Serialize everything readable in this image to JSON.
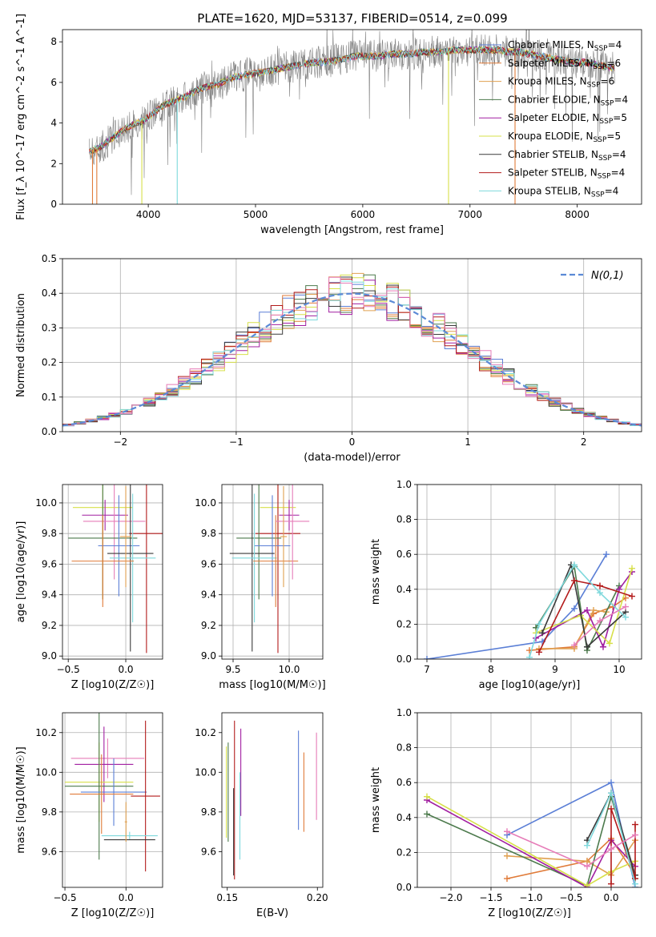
{
  "figure": {
    "title": "PLATE=1620, MJD=53137, FIBERID=0514, z=0.099"
  },
  "colors": {
    "chabrier_miles": "#5b7fd6",
    "salpeter_miles": "#e07b39",
    "kroupa_miles": "#e0a050",
    "chabrier_elodie": "#4c7a4c",
    "salpeter_elodie": "#a11fa1",
    "kroupa_elodie": "#d7e04a",
    "chabrier_stelib": "#3a3a3a",
    "salpeter_stelib": "#b31b1b",
    "kroupa_stelib": "#7ed8dc",
    "extra_pink": "#e67cb8",
    "gauss": "#5b8ad6",
    "data_gray": "#808080"
  },
  "chart_data": [
    {
      "id": "spectrum",
      "type": "line",
      "xlabel": "wavelength [Angstrom, rest frame]",
      "ylabel": "Flux [f_λ 10^-17 erg cm^-2 s^-1 A^-1]",
      "xlim": [
        3200,
        8600
      ],
      "ylim": [
        0,
        8.6
      ],
      "xticks": [
        4000,
        5000,
        6000,
        7000,
        8000
      ],
      "yticks": [
        0,
        2,
        4,
        6,
        8
      ],
      "grid": false,
      "legend_position": "right",
      "continuum": {
        "x": [
          3450,
          3550,
          3650,
          3750,
          3850,
          3950,
          4050,
          4150,
          4250,
          4350,
          4450,
          4550,
          4650,
          4750,
          4850,
          4950,
          5050,
          5150,
          5250,
          5350,
          5450,
          5550,
          5650,
          5750,
          5850,
          5950,
          6050,
          6150,
          6250,
          6350,
          6450,
          6550,
          6650,
          6750,
          6850,
          6950,
          7050,
          7150,
          7250,
          7350,
          7450,
          7550,
          7650,
          7750,
          7850,
          7950,
          8050,
          8150,
          8250,
          8350
        ],
        "y": [
          2.6,
          2.8,
          3.2,
          3.6,
          3.9,
          4.1,
          4.5,
          4.9,
          5.1,
          5.3,
          5.6,
          5.8,
          5.9,
          6.2,
          6.3,
          6.4,
          6.5,
          6.6,
          6.7,
          6.8,
          6.9,
          7.0,
          7.0,
          7.1,
          7.2,
          7.3,
          7.3,
          7.3,
          7.4,
          7.4,
          7.4,
          7.5,
          7.5,
          7.5,
          7.6,
          7.6,
          7.6,
          7.6,
          7.6,
          7.5,
          7.5,
          7.4,
          7.3,
          7.2,
          7.1,
          7.0,
          7.0,
          6.9,
          6.8,
          6.7
        ]
      },
      "series": [
        {
          "name": "Chabrier MILES, N_SSP=4",
          "color_key": "chabrier_miles"
        },
        {
          "name": "Salpeter MILES, N_SSP=6",
          "color_key": "salpeter_miles"
        },
        {
          "name": "Kroupa MILES, N_SSP=6",
          "color_key": "kroupa_miles"
        },
        {
          "name": "Chabrier ELODIE, N_SSP=4",
          "color_key": "chabrier_elodie"
        },
        {
          "name": "Salpeter ELODIE, N_SSP=5",
          "color_key": "salpeter_elodie"
        },
        {
          "name": "Kroupa ELODIE, N_SSP=5",
          "color_key": "kroupa_elodie"
        },
        {
          "name": "Chabrier STELIB, N_SSP=4",
          "color_key": "chabrier_stelib"
        },
        {
          "name": "Salpeter STELIB, N_SSP=4",
          "color_key": "salpeter_stelib"
        },
        {
          "name": "Kroupa STELIB, N_SSP=4",
          "color_key": "kroupa_stelib"
        }
      ]
    },
    {
      "id": "residuals",
      "type": "line",
      "xlabel": "(data-model)/error",
      "ylabel": "Normed distribution",
      "xlim": [
        -2.5,
        2.5
      ],
      "ylim": [
        0,
        0.5
      ],
      "xticks": [
        -2,
        -1,
        0,
        1,
        2
      ],
      "yticks": [
        0.0,
        0.1,
        0.2,
        0.3,
        0.4,
        0.5
      ],
      "grid": true,
      "legend_position": "top-right",
      "gaussian_label": "N(0,1)",
      "hist_bins": [
        -2.6,
        2.6,
        0.1
      ]
    },
    {
      "id": "age_vs_Z",
      "type": "scatter",
      "xlabel": "Z [log10(Z/Z☉)]",
      "ylabel": "age [log10(age/yr)]",
      "xlim": [
        -0.55,
        0.32
      ],
      "ylim": [
        8.98,
        10.12
      ],
      "xticks": [
        -0.5,
        0.0
      ],
      "yticks": [
        9.0,
        9.2,
        9.4,
        9.6,
        9.8,
        10.0
      ],
      "grid": true,
      "points": [
        {
          "color_key": "kroupa_elodie",
          "x": -0.2,
          "xerr": 0.26,
          "y": 9.97,
          "yerr": 0.6
        },
        {
          "color_key": "salpeter_elodie",
          "x": -0.18,
          "xerr": 0.2,
          "y": 9.92,
          "yerr": 0.1
        },
        {
          "color_key": "extra_pink",
          "x": -0.1,
          "xerr": 0.27,
          "y": 9.88,
          "yerr": 0.38
        },
        {
          "color_key": "salpeter_stelib",
          "x": 0.18,
          "xerr": 0.15,
          "y": 9.8,
          "yerr": 0.78
        },
        {
          "color_key": "chabrier_elodie",
          "x": -0.2,
          "xerr": 0.3,
          "y": 9.77,
          "yerr": 0.4
        },
        {
          "color_key": "chabrier_miles",
          "x": -0.06,
          "xerr": 0.18,
          "y": 9.72,
          "yerr": 0.33
        },
        {
          "color_key": "chabrier_stelib",
          "x": 0.04,
          "xerr": 0.2,
          "y": 9.67,
          "yerr": 0.64
        },
        {
          "color_key": "kroupa_stelib",
          "x": 0.06,
          "xerr": 0.2,
          "y": 9.64,
          "yerr": 0.42
        },
        {
          "color_key": "salpeter_miles",
          "x": -0.2,
          "xerr": 0.27,
          "y": 9.62,
          "yerr": 0.3
        },
        {
          "color_key": "kroupa_miles",
          "x": 0.0,
          "xerr": 0.05,
          "y": 9.78,
          "yerr": 0.33
        }
      ]
    },
    {
      "id": "age_vs_mass",
      "type": "scatter",
      "xlabel": "mass [log10(M/M☉)]",
      "ylabel": "",
      "xlim": [
        9.4,
        10.3
      ],
      "ylim": [
        8.98,
        10.12
      ],
      "xticks": [
        9.5,
        10.0
      ],
      "yticks": [
        9.0,
        9.2,
        9.4,
        9.6,
        9.8,
        10.0
      ],
      "grid": true,
      "points": [
        {
          "color_key": "kroupa_elodie",
          "x": 9.9,
          "xerr": 0.16,
          "y": 9.97,
          "yerr": 0.6
        },
        {
          "color_key": "salpeter_elodie",
          "x": 10.0,
          "xerr": 0.09,
          "y": 9.92,
          "yerr": 0.1
        },
        {
          "color_key": "salpeter_stelib",
          "x": 9.9,
          "xerr": 0.2,
          "y": 9.8,
          "yerr": 0.78
        },
        {
          "color_key": "chabrier_elodie",
          "x": 9.73,
          "xerr": 0.2,
          "y": 9.77,
          "yerr": 0.4
        },
        {
          "color_key": "chabrier_miles",
          "x": 9.85,
          "xerr": 0.16,
          "y": 9.72,
          "yerr": 0.33
        },
        {
          "color_key": "chabrier_stelib",
          "x": 9.67,
          "xerr": 0.2,
          "y": 9.67,
          "yerr": 0.64
        },
        {
          "color_key": "kroupa_stelib",
          "x": 9.69,
          "xerr": 0.2,
          "y": 9.64,
          "yerr": 0.42
        },
        {
          "color_key": "salpeter_miles",
          "x": 9.88,
          "xerr": 0.2,
          "y": 9.62,
          "yerr": 0.3
        },
        {
          "color_key": "extra_pink",
          "x": 10.03,
          "xerr": 0.15,
          "y": 9.88,
          "yerr": 0.38
        },
        {
          "color_key": "kroupa_miles",
          "x": 9.95,
          "xerr": 0.03,
          "y": 9.78,
          "yerr": 0.33
        }
      ]
    },
    {
      "id": "weight_vs_age",
      "type": "line",
      "xlabel": "age [log10(age/yr)]",
      "ylabel": "mass weight",
      "xlim": [
        6.85,
        10.35
      ],
      "ylim": [
        0,
        1
      ],
      "xticks": [
        7,
        8,
        9,
        10
      ],
      "yticks": [
        0.0,
        0.2,
        0.4,
        0.6,
        0.8,
        1.0
      ],
      "grid": true,
      "series": [
        {
          "color_key": "chabrier_miles",
          "x": [
            7.0,
            8.8,
            9.3,
            9.8
          ],
          "y": [
            0.0,
            0.1,
            0.29,
            0.6
          ]
        },
        {
          "color_key": "salpeter_miles",
          "x": [
            8.6,
            9.3,
            9.6,
            9.9,
            10.1
          ],
          "y": [
            0.05,
            0.07,
            0.26,
            0.3,
            0.35
          ]
        },
        {
          "color_key": "kroupa_miles",
          "x": [
            8.75,
            9.3,
            9.6,
            9.8
          ],
          "y": [
            0.06,
            0.06,
            0.28,
            0.27
          ]
        },
        {
          "color_key": "chabrier_elodie",
          "x": [
            8.7,
            9.3,
            9.5,
            10.0
          ],
          "y": [
            0.18,
            0.53,
            0.05,
            0.42
          ]
        },
        {
          "color_key": "salpeter_elodie",
          "x": [
            8.7,
            9.5,
            9.75,
            10.0,
            10.2
          ],
          "y": [
            0.12,
            0.28,
            0.07,
            0.4,
            0.5
          ]
        },
        {
          "color_key": "kroupa_elodie",
          "x": [
            8.7,
            9.4,
            9.85,
            10.2
          ],
          "y": [
            0.15,
            0.25,
            0.09,
            0.52
          ]
        },
        {
          "color_key": "chabrier_stelib",
          "x": [
            8.8,
            9.25,
            9.5,
            10.1
          ],
          "y": [
            0.15,
            0.54,
            0.07,
            0.27
          ]
        },
        {
          "color_key": "salpeter_stelib",
          "x": [
            8.75,
            9.3,
            9.7,
            10.2
          ],
          "y": [
            0.04,
            0.45,
            0.42,
            0.36
          ]
        },
        {
          "color_key": "kroupa_stelib",
          "x": [
            8.6,
            8.75,
            9.3,
            9.7,
            10.1
          ],
          "y": [
            0.01,
            0.2,
            0.54,
            0.38,
            0.24
          ]
        },
        {
          "color_key": "extra_pink",
          "x": [
            9.3,
            9.7,
            10.1
          ],
          "y": [
            0.08,
            0.22,
            0.3
          ]
        }
      ]
    },
    {
      "id": "mass_vs_Z",
      "type": "scatter",
      "xlabel": "Z [log10(Z/Z☉)]",
      "ylabel": "mass [log10(M/M☉)]",
      "xlim": [
        -0.52,
        0.3
      ],
      "ylim": [
        9.42,
        10.3
      ],
      "xticks": [
        -0.5,
        0.0
      ],
      "yticks": [
        9.6,
        9.8,
        10.0,
        10.2
      ],
      "grid": true,
      "points": [
        {
          "color_key": "extra_pink",
          "x": -0.15,
          "xerr": 0.3,
          "y": 10.07,
          "yerr": 0.1
        },
        {
          "color_key": "salpeter_elodie",
          "x": -0.18,
          "xerr": 0.24,
          "y": 10.04,
          "yerr": 0.19
        },
        {
          "color_key": "kroupa_elodie",
          "x": -0.22,
          "xerr": 0.28,
          "y": 9.95,
          "yerr": 0.2
        },
        {
          "color_key": "chabrier_elodie",
          "x": -0.22,
          "xerr": 0.28,
          "y": 9.93,
          "yerr": 0.37
        },
        {
          "color_key": "chabrier_miles",
          "x": -0.1,
          "xerr": 0.27,
          "y": 9.9,
          "yerr": 0.17
        },
        {
          "color_key": "salpeter_miles",
          "x": -0.2,
          "xerr": 0.26,
          "y": 9.89,
          "yerr": 0.2
        },
        {
          "color_key": "salpeter_stelib",
          "x": 0.16,
          "xerr": 0.12,
          "y": 9.88,
          "yerr": 0.38
        },
        {
          "color_key": "kroupa_stelib",
          "x": 0.03,
          "xerr": 0.23,
          "y": 9.68,
          "yerr": 0.02
        },
        {
          "color_key": "chabrier_stelib",
          "x": 0.03,
          "xerr": 0.21,
          "y": 9.66,
          "yerr": 0.0
        },
        {
          "color_key": "kroupa_miles",
          "x": 0.0,
          "xerr": 0.01,
          "y": 9.75,
          "yerr": 0.1
        }
      ]
    },
    {
      "id": "mass_vs_ebv",
      "type": "scatter",
      "xlabel": "E(B-V)",
      "ylabel": "",
      "xlim": [
        0.147,
        0.203
      ],
      "ylim": [
        9.42,
        10.3
      ],
      "xticks": [
        0.15,
        0.2
      ],
      "yticks": [
        9.6,
        9.8,
        10.0,
        10.2
      ],
      "grid": false,
      "points": [
        {
          "color_key": "kroupa_elodie",
          "x": 0.1495,
          "y": 9.9,
          "yerr": 0.23
        },
        {
          "color_key": "chabrier_elodie",
          "x": 0.1505,
          "y": 9.9,
          "yerr": 0.25
        },
        {
          "color_key": "salpeter_stelib",
          "x": 0.154,
          "y": 9.86,
          "yerr": 0.4
        },
        {
          "color_key": "chabrier_stelib",
          "x": 0.1535,
          "y": 9.7,
          "yerr": 0.22
        },
        {
          "color_key": "salpeter_elodie",
          "x": 0.1575,
          "y": 10.0,
          "yerr": 0.22
        },
        {
          "color_key": "kroupa_stelib",
          "x": 0.157,
          "y": 9.78,
          "yerr": 0.22
        },
        {
          "color_key": "chabrier_miles",
          "x": 0.1895,
          "y": 9.96,
          "yerr": 0.25
        },
        {
          "color_key": "salpeter_miles",
          "x": 0.1925,
          "y": 9.9,
          "yerr": 0.2
        },
        {
          "color_key": "extra_pink",
          "x": 0.1995,
          "y": 9.98,
          "yerr": 0.22
        }
      ]
    },
    {
      "id": "weight_vs_Z",
      "type": "line",
      "xlabel": "Z [log10(Z/Z☉)]",
      "ylabel": "mass weight",
      "xlim": [
        -2.42,
        0.38
      ],
      "ylim": [
        0,
        1
      ],
      "xticks": [
        -2.0,
        -1.5,
        -1.0,
        -0.5,
        0.0
      ],
      "yticks": [
        0.0,
        0.2,
        0.4,
        0.6,
        0.8,
        1.0
      ],
      "grid": true,
      "series": [
        {
          "color_key": "chabrier_miles",
          "x": [
            -1.3,
            0.0,
            0.3
          ],
          "y": [
            0.3,
            0.6,
            0.0
          ]
        },
        {
          "color_key": "salpeter_miles",
          "x": [
            -1.3,
            -0.3,
            0.0,
            0.3
          ],
          "y": [
            0.05,
            0.15,
            0.28,
            0.07
          ]
        },
        {
          "color_key": "kroupa_miles",
          "x": [
            -1.3,
            -0.3,
            0.0,
            0.3
          ],
          "y": [
            0.18,
            0.15,
            0.07,
            0.27
          ]
        },
        {
          "color_key": "chabrier_elodie",
          "x": [
            -2.3,
            -0.3,
            0.0,
            0.3
          ],
          "y": [
            0.42,
            0.01,
            0.52,
            0.05
          ]
        },
        {
          "color_key": "salpeter_elodie",
          "x": [
            -2.3,
            -0.3,
            0.0,
            0.3
          ],
          "y": [
            0.5,
            0.0,
            0.27,
            0.12
          ]
        },
        {
          "color_key": "kroupa_elodie",
          "x": [
            -2.3,
            -0.3,
            0.0,
            0.3
          ],
          "y": [
            0.52,
            0.01,
            0.09,
            0.15
          ]
        },
        {
          "color_key": "chabrier_stelib",
          "x": [
            -0.3,
            0.0,
            0.3
          ],
          "y": [
            0.27,
            0.54,
            0.07
          ]
        },
        {
          "color_key": "salpeter_stelib",
          "x": [
            0.0,
            0.0,
            0.3,
            0.3
          ],
          "y": [
            0.02,
            0.45,
            0.05,
            0.36
          ]
        },
        {
          "color_key": "kroupa_stelib",
          "x": [
            -0.3,
            0.0,
            0.3
          ],
          "y": [
            0.24,
            0.54,
            0.02
          ]
        },
        {
          "color_key": "extra_pink",
          "x": [
            -1.3,
            -0.3,
            0.0,
            0.3
          ],
          "y": [
            0.32,
            0.12,
            0.22,
            0.3
          ]
        }
      ]
    }
  ]
}
